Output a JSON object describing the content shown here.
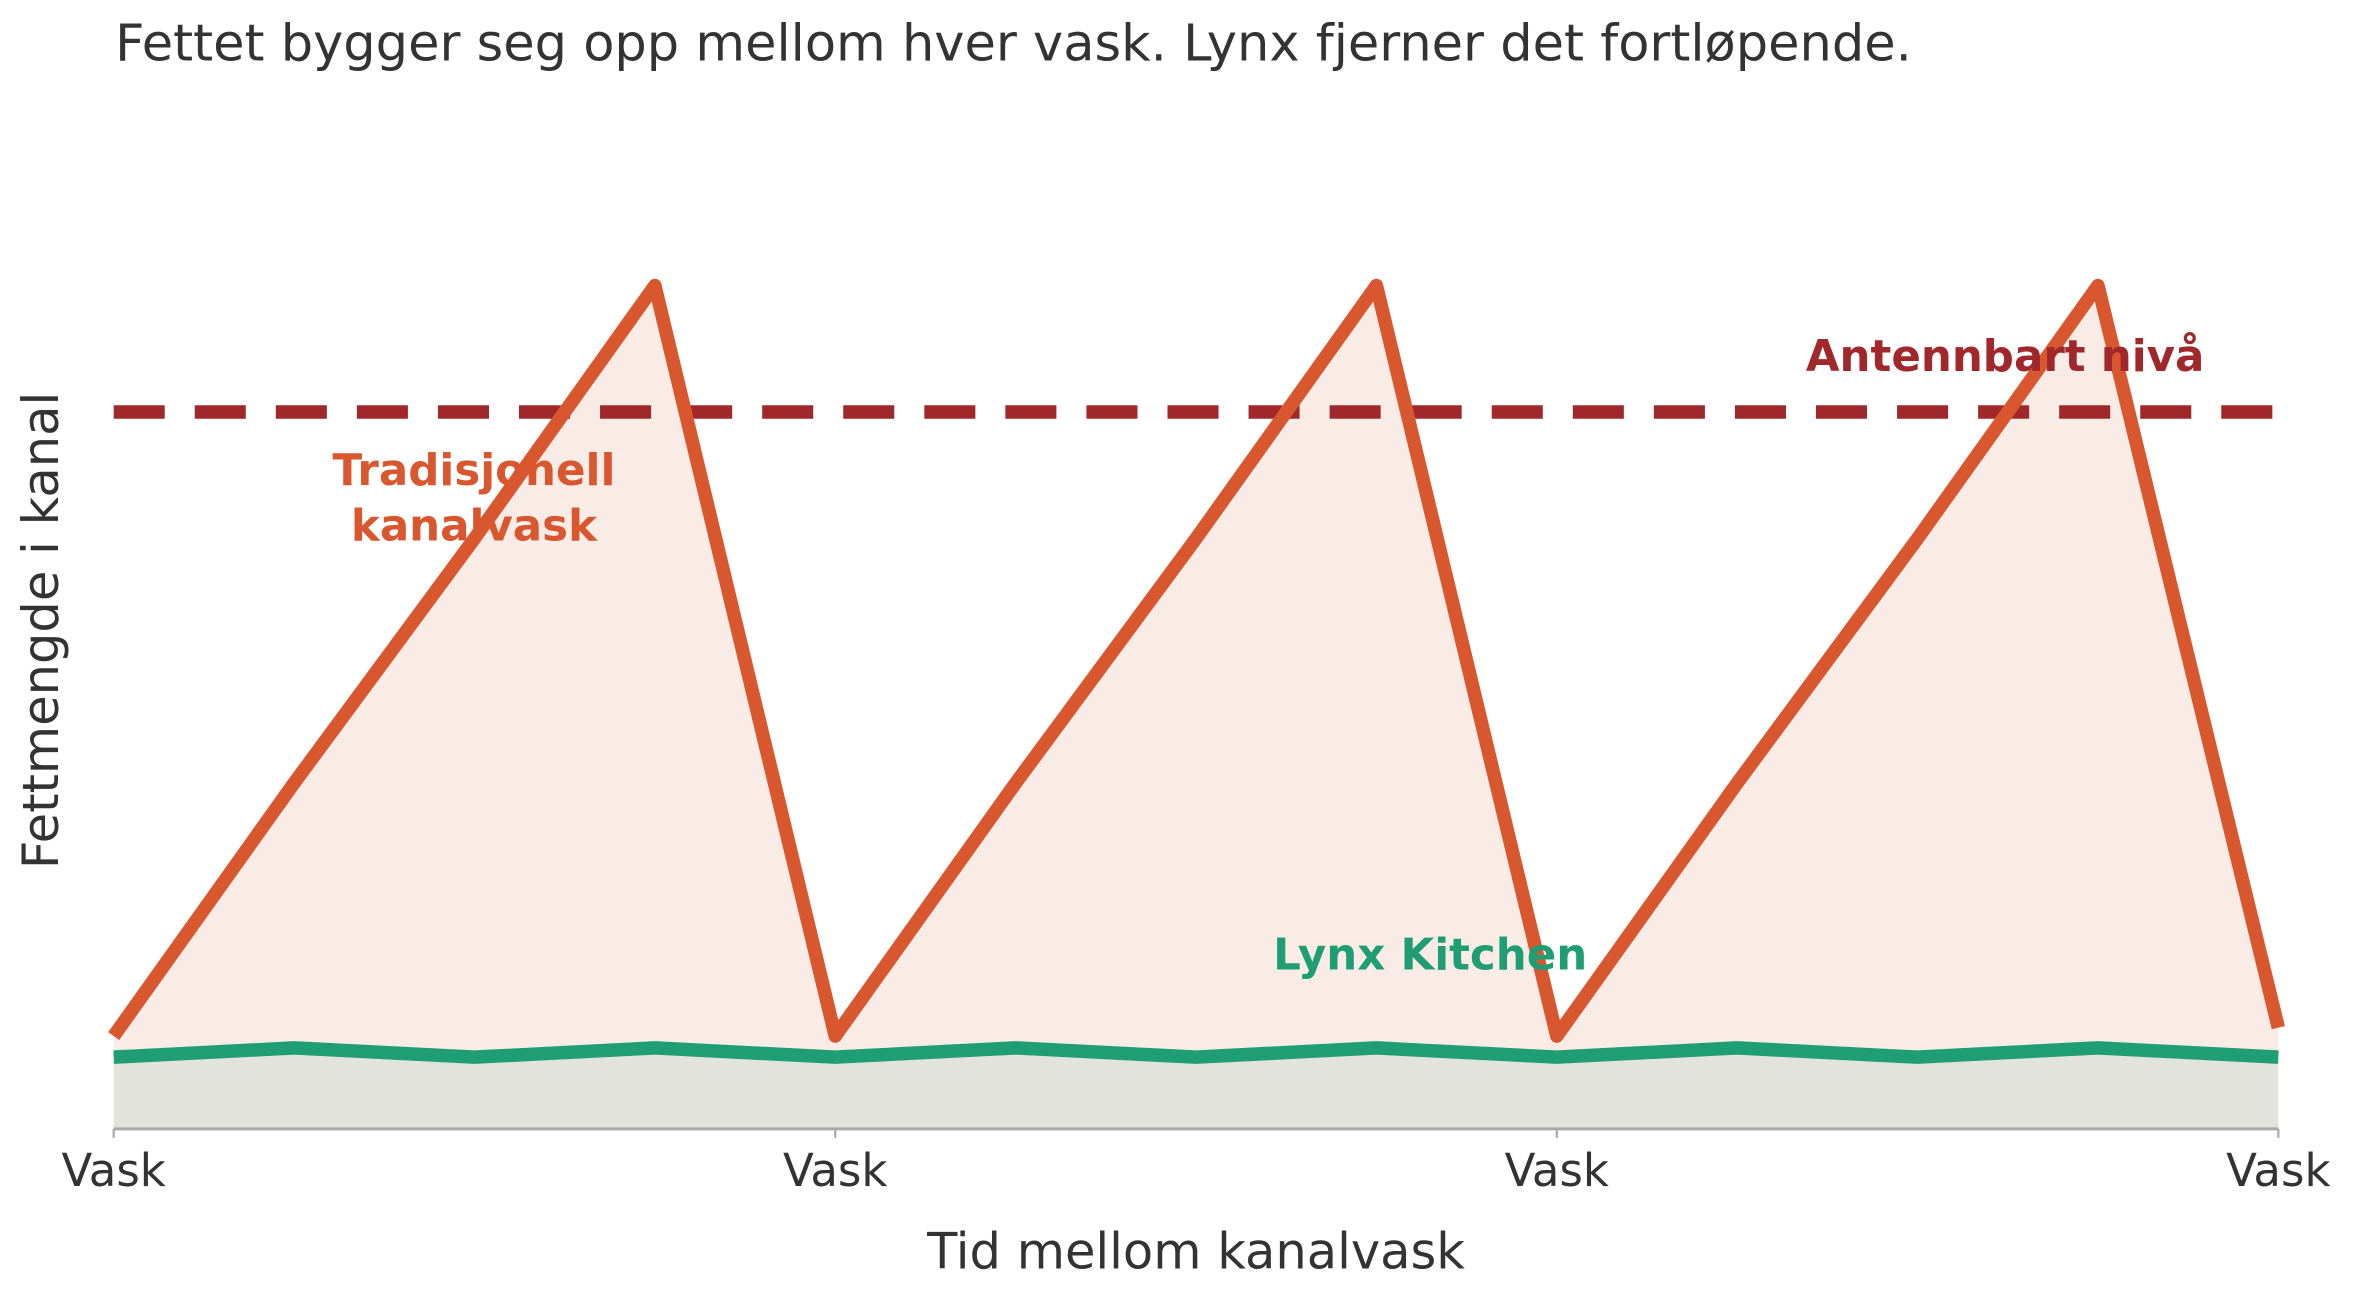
{
  "chart_data": {
    "type": "line",
    "title": "Fettet bygger seg opp mellom hver vask. Lynx fjerner det fortløpende.",
    "x_label": "Tid mellom kanalvask",
    "y_label": "Fettmengde i kanal",
    "x": [
      0,
      0.25,
      0.5,
      0.75,
      1,
      1.25,
      1.5,
      1.75,
      2,
      2.25,
      2.5,
      2.75,
      3
    ],
    "series": [
      {
        "name": "Tradisjonell kanalvask",
        "color": "#d9572e",
        "fill": "#f9ece6",
        "values": [
          11,
          41,
          70,
          100,
          11,
          41,
          70,
          100,
          11,
          41,
          70,
          100,
          12
        ]
      },
      {
        "name": "Lynx Kitchen",
        "color": "#1f9e74",
        "fill": "#e2e3dc",
        "values": [
          8.5,
          9.6,
          8.5,
          9.6,
          8.5,
          9.6,
          8.5,
          9.6,
          8.5,
          9.6,
          8.5,
          9.6,
          8.5
        ]
      }
    ],
    "threshold": {
      "value": 85,
      "label": "Antennbart nivå",
      "color": "#a0282a"
    },
    "xlim": [
      0,
      3
    ],
    "xticks": [
      {
        "value": 0,
        "label": "Vask"
      },
      {
        "value": 1,
        "label": "Vask"
      },
      {
        "value": 2,
        "label": "Vask"
      },
      {
        "value": 3,
        "label": "Vask"
      }
    ],
    "ylim": [
      0,
      110
    ]
  }
}
